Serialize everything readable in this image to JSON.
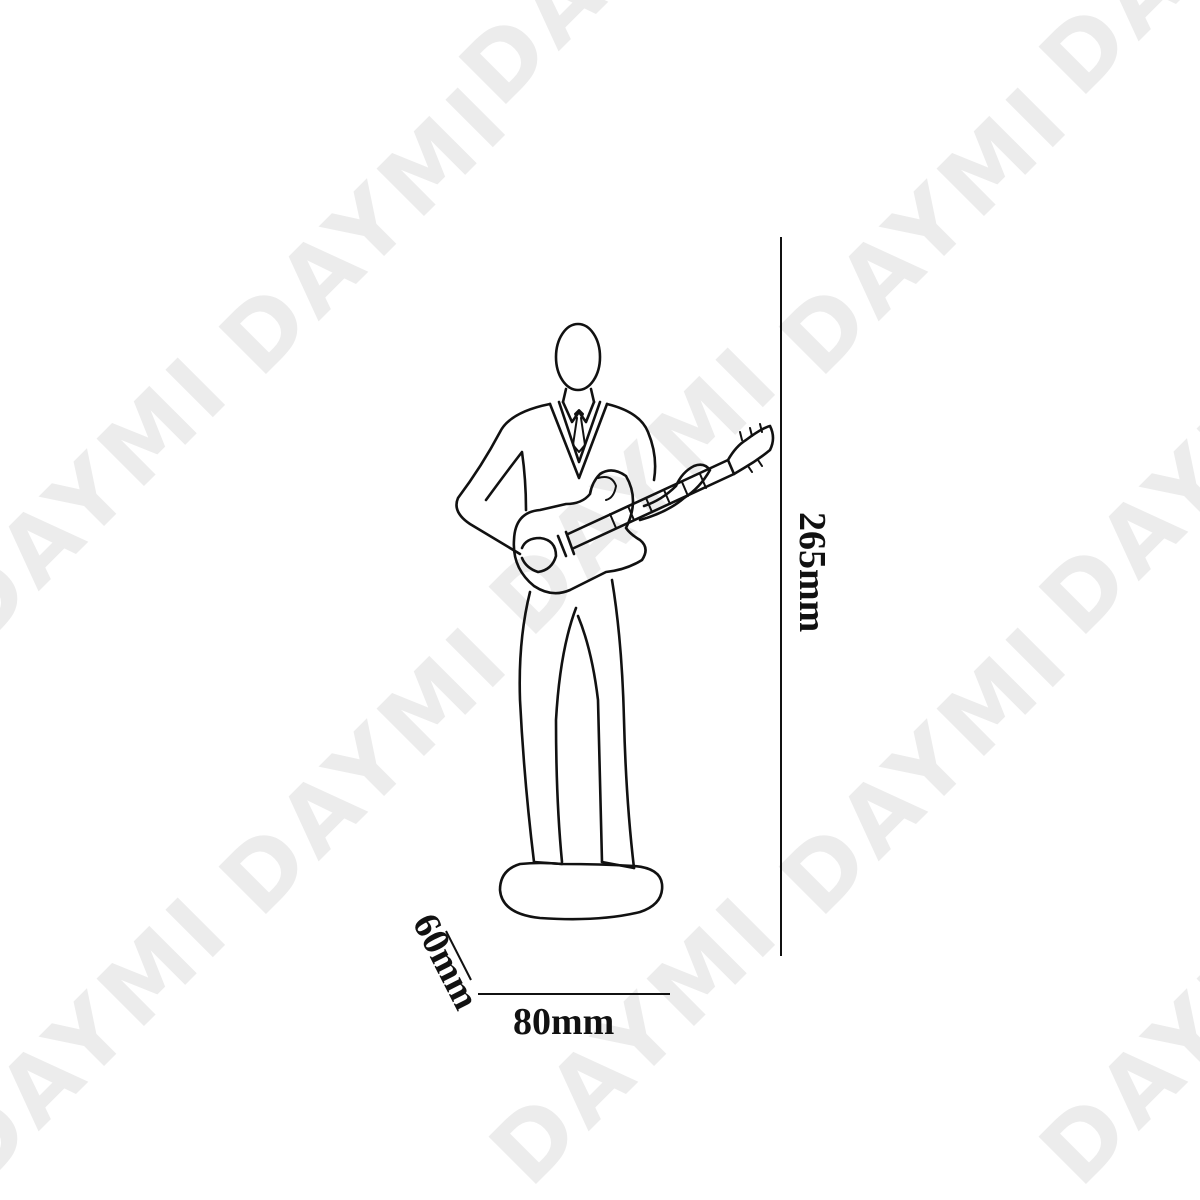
{
  "watermark": {
    "text": "DAYMI"
  },
  "dimensions": {
    "height": "265mm",
    "width": "80mm",
    "depth": "60mm"
  },
  "figure": {
    "subject": "guitar-player-figurine"
  }
}
